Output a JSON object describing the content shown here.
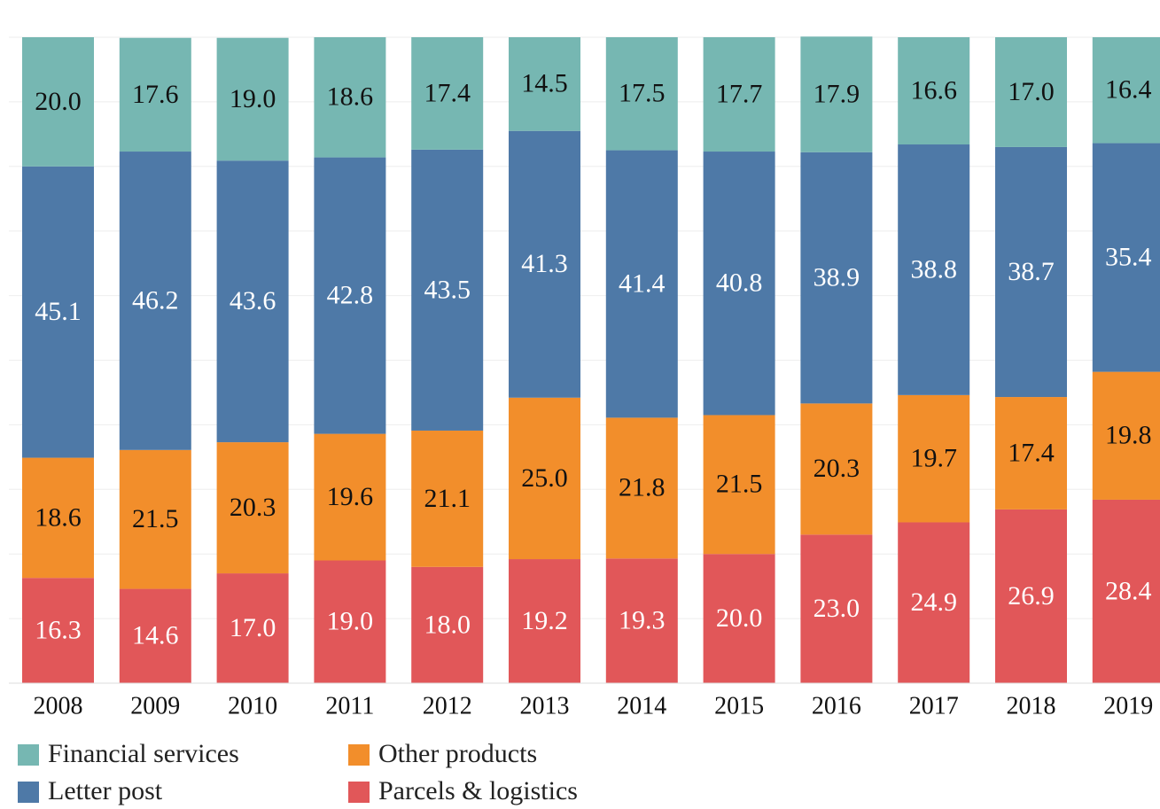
{
  "chart_data": {
    "type": "stacked_bar",
    "categories": [
      "2008",
      "2009",
      "2010",
      "2011",
      "2012",
      "2013",
      "2014",
      "2015",
      "2016",
      "2017",
      "2018",
      "2019"
    ],
    "series": [
      {
        "name": "Financial services",
        "color": "#76b7b2",
        "label_color": "#111111",
        "values": [
          20.0,
          17.6,
          19.0,
          18.6,
          17.4,
          14.5,
          17.5,
          17.7,
          17.9,
          16.6,
          17.0,
          16.4
        ],
        "value_labels": [
          "20.0",
          "17.6",
          "19.0",
          "18.6",
          "17.4",
          "14.5",
          "17.5",
          "17.7",
          "17.9",
          "16.6",
          "17.0",
          "16.4"
        ]
      },
      {
        "name": "Letter post",
        "color": "#4e79a7",
        "label_color": "#ffffff",
        "values": [
          45.1,
          46.2,
          43.6,
          42.8,
          43.5,
          41.3,
          41.4,
          40.8,
          38.9,
          38.8,
          38.7,
          35.4
        ]
      },
      {
        "name": "Other products",
        "color": "#f28e2b",
        "label_color": "#111111",
        "values": [
          18.6,
          21.5,
          20.3,
          19.6,
          21.1,
          25.0,
          21.8,
          21.5,
          20.3,
          19.7,
          17.4,
          19.8
        ],
        "value_labels": [
          "18.6",
          "21.5",
          "20.3",
          "19.6",
          "21.1",
          "25.0",
          "21.8",
          "21.5",
          "20.3",
          "19.7",
          "17.4",
          "19.8"
        ]
      },
      {
        "name": "Parcels & logistics",
        "color": "#e15759",
        "label_color": "#ffffff",
        "values": [
          16.3,
          14.6,
          17.0,
          19.0,
          18.0,
          19.2,
          19.3,
          20.0,
          23.0,
          24.9,
          26.9,
          28.4
        ],
        "value_labels": [
          "16.3",
          "14.6",
          "17.0",
          "19.0",
          "18.0",
          "19.2",
          "19.3",
          "20.0",
          "23.0",
          "24.9",
          "26.9",
          "28.4"
        ]
      }
    ],
    "ylim": [
      0,
      100
    ],
    "yticks": [
      0,
      10,
      20,
      30,
      40,
      50,
      60,
      70,
      80,
      90,
      100
    ],
    "grid": true
  }
}
